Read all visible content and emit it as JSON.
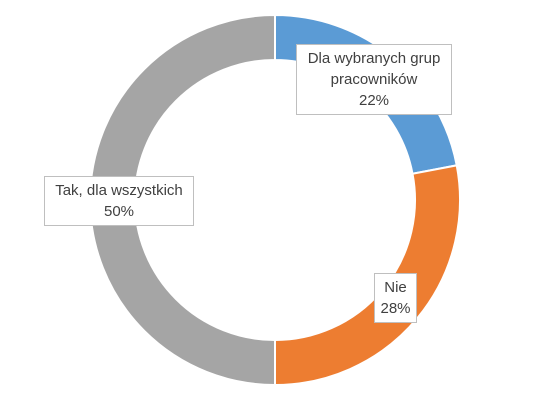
{
  "chart_data": {
    "type": "donut",
    "categories": [
      "Dla wybranych grup pracowników",
      "Nie",
      "Tak, dla wszystkich"
    ],
    "values": [
      22,
      28,
      50
    ],
    "value_labels": [
      "22%",
      "28%",
      "50%"
    ],
    "colors": [
      "#5b9bd5",
      "#ed7d31",
      "#a5a5a5"
    ]
  }
}
